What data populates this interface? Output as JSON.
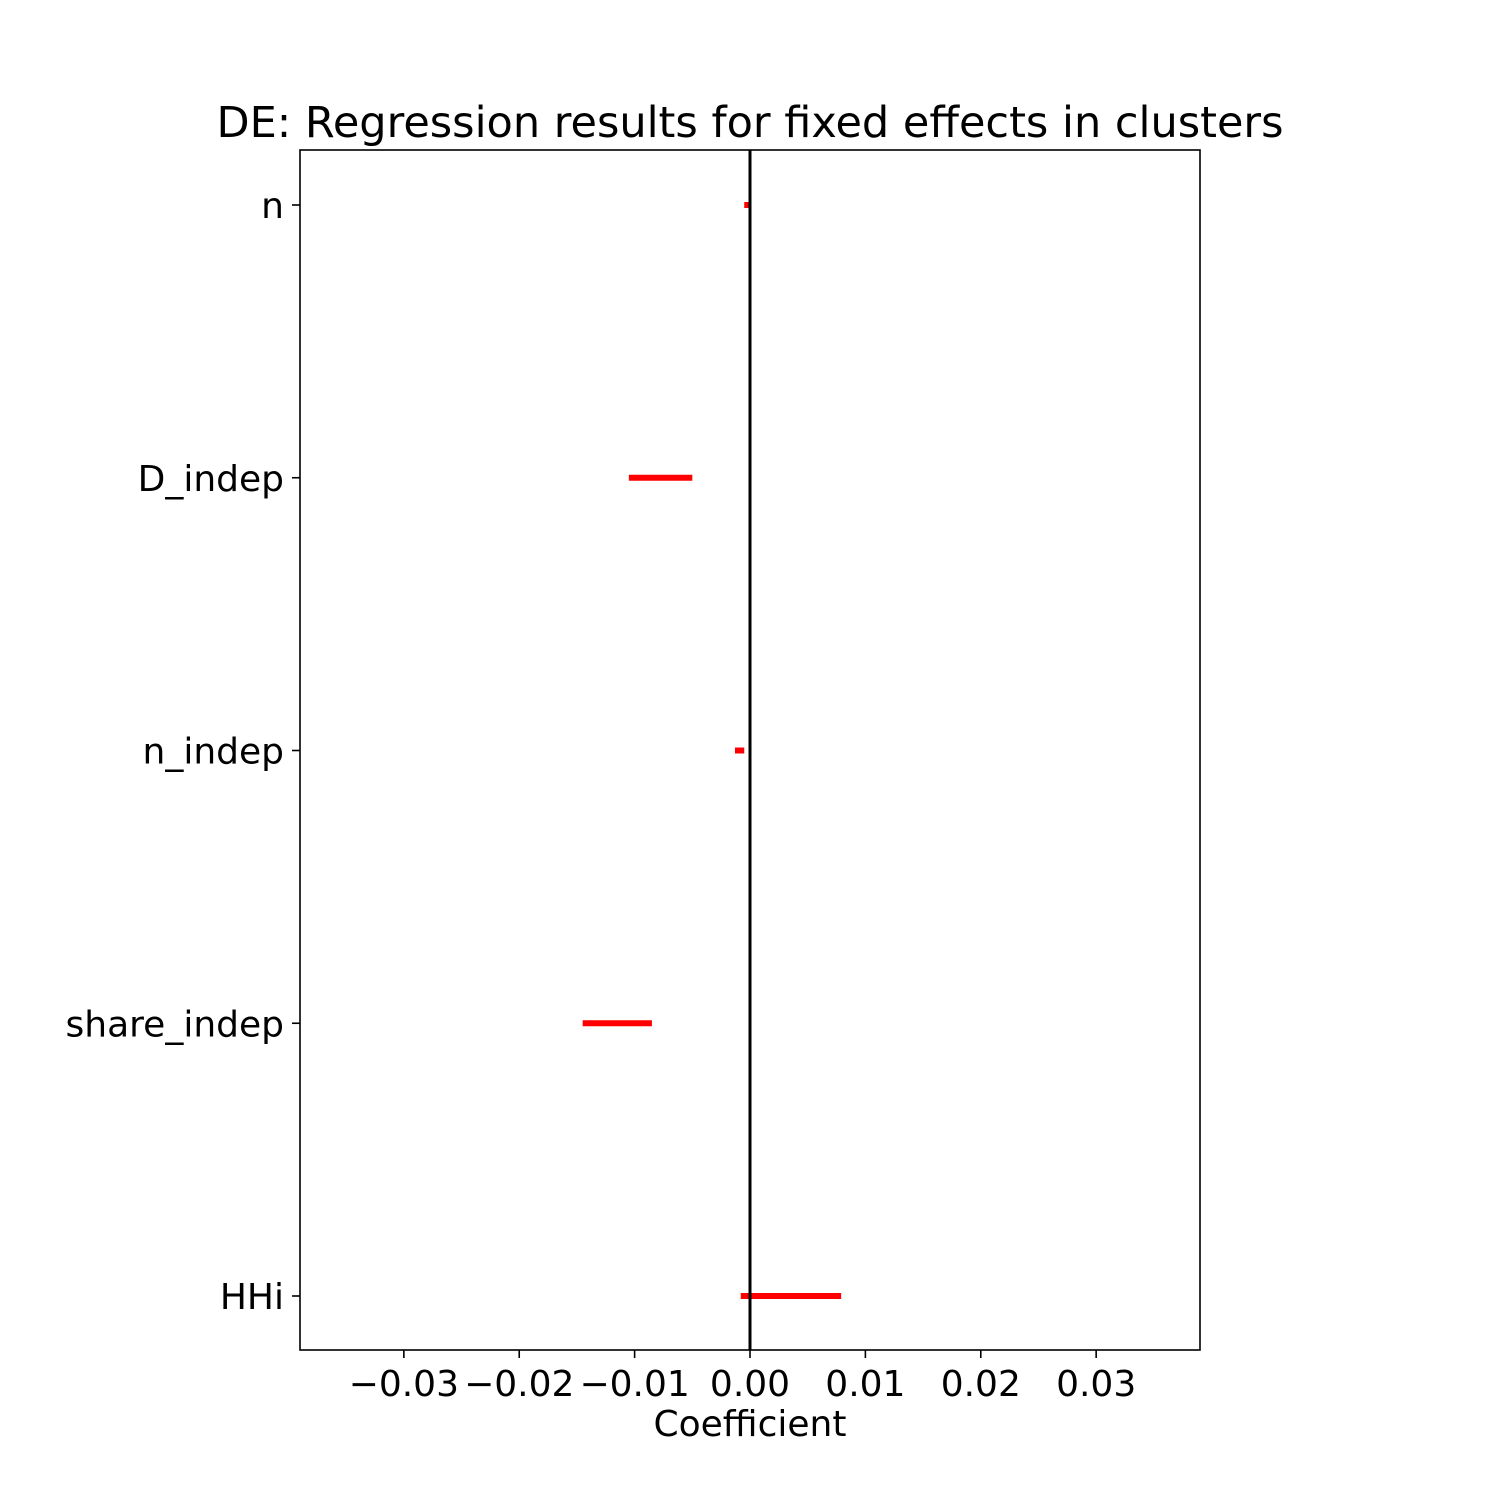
{
  "chart_data": {
    "type": "interval",
    "title": "DE: Regression results for fixed effects in clusters",
    "xlabel": "Coefficient",
    "ylabel": "",
    "xlim": [
      -0.039,
      0.039
    ],
    "xticks": [
      -0.03,
      -0.02,
      -0.01,
      0.0,
      0.01,
      0.02,
      0.03
    ],
    "xtick_labels": [
      "−0.03",
      "−0.02",
      "−0.01",
      "0.00",
      "0.01",
      "0.02",
      "0.03"
    ],
    "categories": [
      "n",
      "D_indep",
      "n_indep",
      "share_indep",
      "HHi"
    ],
    "intervals": [
      {
        "name": "n",
        "low": -0.0005,
        "high": 0.0
      },
      {
        "name": "D_indep",
        "low": -0.0105,
        "high": -0.005
      },
      {
        "name": "n_indep",
        "low": -0.0013,
        "high": -0.0005
      },
      {
        "name": "share_indep",
        "low": -0.0145,
        "high": -0.0085
      },
      {
        "name": "HHi",
        "low": -0.0008,
        "high": 0.0079
      }
    ],
    "reference_line_x": 0.0,
    "interval_color": "#ff0000",
    "reference_line_color": "#000000",
    "grid": false,
    "legend": "none"
  }
}
